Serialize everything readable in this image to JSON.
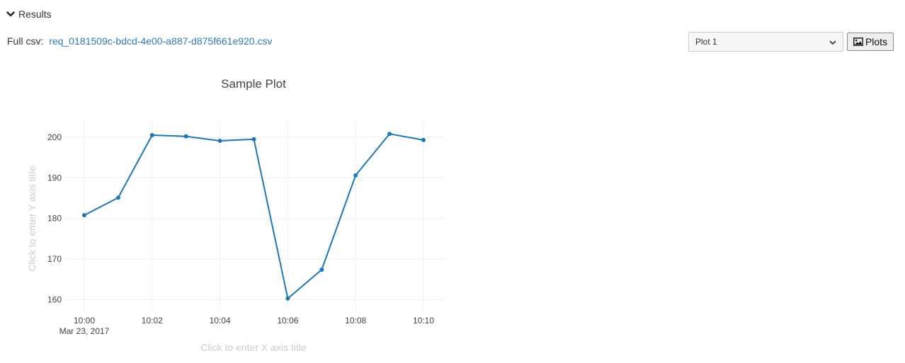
{
  "results": {
    "label": "Results",
    "icon": "chevron-down-icon"
  },
  "csv": {
    "label": "Full csv:",
    "link_text": "req_0181509c-bdcd-4e00-a887-d875f661e920.csv"
  },
  "plot_select": {
    "selected": "Plot 1",
    "icon": "chevron-down-icon"
  },
  "plots_button": {
    "label": "Plots",
    "icon": "image-icon"
  },
  "colors": {
    "line": "#1f77b4",
    "link": "#337ab7",
    "grid": "#eeeeee",
    "placeholder": "#cccccc"
  },
  "chart_data": {
    "type": "line",
    "title": "Sample Plot",
    "xlabel": "Click to enter X axis title",
    "ylabel": "Click to enter Y axis title",
    "x": [
      "10:00",
      "10:01",
      "10:02",
      "10:03",
      "10:04",
      "10:05",
      "10:06",
      "10:07",
      "10:08",
      "10:09",
      "10:10"
    ],
    "x_date": "Mar 23, 2017",
    "x_ticks": [
      "10:00",
      "10:02",
      "10:04",
      "10:06",
      "10:08",
      "10:10"
    ],
    "series": [
      {
        "values": [
          180.8,
          185.1,
          200.5,
          200.2,
          199.1,
          199.5,
          160.3,
          167.4,
          190.6,
          200.8,
          199.3
        ]
      }
    ],
    "y_ticks": [
      160,
      170,
      180,
      190,
      200
    ],
    "ylim": [
      157.5,
      203.8
    ],
    "grid": true,
    "markers": true
  }
}
